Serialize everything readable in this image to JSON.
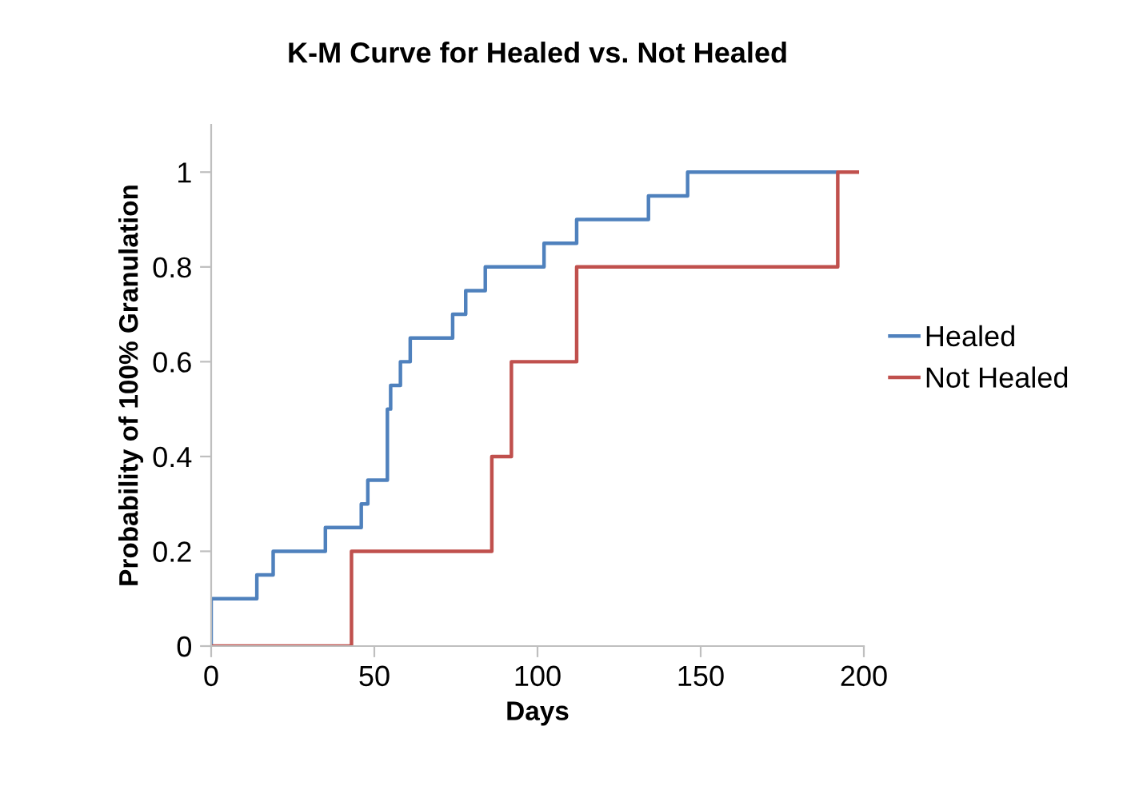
{
  "chart_data": {
    "type": "step",
    "title": "K-M Curve for Healed vs. Not Healed",
    "xlabel": "Days",
    "ylabel": "Probability of 100% Granulation",
    "series": [
      {
        "name": "Healed",
        "color": "#4f81bd",
        "x": [
          0,
          0,
          14,
          19,
          35,
          46,
          48,
          54,
          55,
          58,
          61,
          74,
          78,
          84,
          102,
          112,
          134,
          146,
          192
        ],
        "values": [
          0,
          0.1,
          0.15,
          0.2,
          0.25,
          0.3,
          0.35,
          0.5,
          0.55,
          0.6,
          0.65,
          0.7,
          0.75,
          0.8,
          0.85,
          0.9,
          0.95,
          1,
          1
        ]
      },
      {
        "name": "Not Healed",
        "color": "#c0504d",
        "x": [
          0,
          43,
          86,
          92,
          112,
          192,
          198
        ],
        "values": [
          0,
          0.2,
          0.4,
          0.6,
          0.8,
          1,
          1
        ]
      }
    ],
    "xlim": [
      0,
      200
    ],
    "xticks": [
      0,
      50,
      100,
      150,
      200
    ],
    "ylim": [
      0,
      1.1
    ],
    "yticks": [
      0,
      0.2,
      0.4,
      0.6,
      0.8,
      1
    ],
    "grid": false,
    "legend": "right"
  }
}
